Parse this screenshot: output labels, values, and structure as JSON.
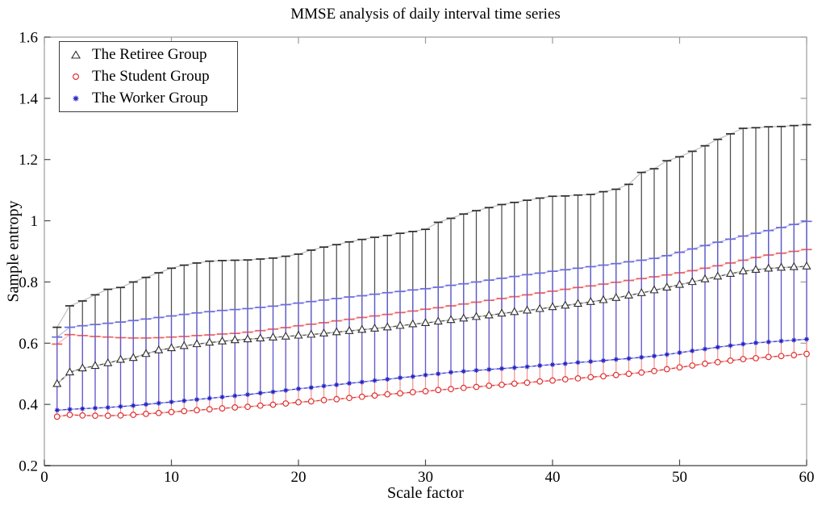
{
  "title": "MMSE analysis of daily interval time series",
  "axes": {
    "xlabel": "Scale factor",
    "ylabel": "Sample entropy",
    "xlim": [
      0,
      60
    ],
    "ylim": [
      0.2,
      1.6
    ],
    "x_ticks": [
      "0",
      "10",
      "20",
      "30",
      "40",
      "50",
      "60"
    ],
    "y_ticks": [
      "0.2",
      "0.4",
      "0.6",
      "0.8",
      "1",
      "1.2",
      "1.4",
      "1.6"
    ],
    "grid": "off",
    "box": "on"
  },
  "legend": {
    "position": "top-left"
  },
  "chart_data": {
    "type": "line",
    "note": "three series of mean sample entropy vs scale factor, each with upper error bars",
    "x": [
      1,
      2,
      3,
      4,
      5,
      6,
      7,
      8,
      9,
      10,
      11,
      12,
      13,
      14,
      15,
      16,
      17,
      18,
      19,
      20,
      21,
      22,
      23,
      24,
      25,
      26,
      27,
      28,
      29,
      30,
      31,
      32,
      33,
      34,
      35,
      36,
      37,
      38,
      39,
      40,
      41,
      42,
      43,
      44,
      45,
      46,
      47,
      48,
      49,
      50,
      51,
      52,
      53,
      54,
      55,
      56,
      57,
      58,
      59,
      60
    ],
    "series": [
      {
        "id": "retiree",
        "name": "The Retiree Group",
        "marker": "triangle",
        "colors": {
          "marker": "#2c2c2c",
          "line_base": "#c4c4c4",
          "line_dash": "#4a4a4a",
          "bar": "#4d4d4d",
          "cap": "#2c2c2c",
          "upper_line": "#bdbdbd"
        },
        "values": [
          0.467,
          0.505,
          0.518,
          0.526,
          0.535,
          0.546,
          0.552,
          0.565,
          0.577,
          0.584,
          0.591,
          0.597,
          0.602,
          0.606,
          0.61,
          0.613,
          0.616,
          0.619,
          0.622,
          0.625,
          0.628,
          0.632,
          0.636,
          0.64,
          0.644,
          0.648,
          0.652,
          0.657,
          0.662,
          0.666,
          0.671,
          0.676,
          0.681,
          0.686,
          0.691,
          0.697,
          0.702,
          0.707,
          0.712,
          0.718,
          0.723,
          0.729,
          0.735,
          0.741,
          0.748,
          0.756,
          0.764,
          0.773,
          0.782,
          0.791,
          0.8,
          0.809,
          0.818,
          0.827,
          0.835,
          0.84,
          0.844,
          0.847,
          0.849,
          0.851
        ],
        "upper": [
          0.652,
          0.722,
          0.738,
          0.758,
          0.776,
          0.782,
          0.8,
          0.815,
          0.83,
          0.845,
          0.855,
          0.862,
          0.868,
          0.87,
          0.871,
          0.872,
          0.875,
          0.878,
          0.884,
          0.891,
          0.904,
          0.914,
          0.922,
          0.931,
          0.939,
          0.946,
          0.952,
          0.959,
          0.965,
          0.972,
          0.995,
          1.008,
          1.022,
          1.033,
          1.043,
          1.053,
          1.06,
          1.067,
          1.074,
          1.08,
          1.081,
          1.084,
          1.086,
          1.095,
          1.103,
          1.119,
          1.158,
          1.17,
          1.196,
          1.209,
          1.227,
          1.245,
          1.266,
          1.284,
          1.302,
          1.304,
          1.307,
          1.308,
          1.311,
          1.314
        ]
      },
      {
        "id": "student",
        "name": "The Student Group",
        "marker": "circle",
        "colors": {
          "marker": "#e03030",
          "line_base": "#f5aaaa",
          "line_dash": "#e03535",
          "bar": "#f29292",
          "cap": "#ee5f5f",
          "upper_line": "#f6b0b0"
        },
        "values": [
          0.36,
          0.366,
          0.364,
          0.363,
          0.363,
          0.364,
          0.366,
          0.369,
          0.372,
          0.375,
          0.378,
          0.381,
          0.384,
          0.387,
          0.39,
          0.392,
          0.396,
          0.399,
          0.403,
          0.407,
          0.41,
          0.414,
          0.417,
          0.421,
          0.425,
          0.429,
          0.433,
          0.436,
          0.44,
          0.443,
          0.447,
          0.45,
          0.454,
          0.457,
          0.461,
          0.464,
          0.468,
          0.471,
          0.475,
          0.478,
          0.482,
          0.485,
          0.489,
          0.492,
          0.496,
          0.5,
          0.504,
          0.509,
          0.515,
          0.521,
          0.527,
          0.533,
          0.538,
          0.543,
          0.548,
          0.551,
          0.555,
          0.558,
          0.561,
          0.565
        ],
        "upper": [
          0.597,
          0.628,
          0.625,
          0.622,
          0.62,
          0.618,
          0.617,
          0.617,
          0.618,
          0.62,
          0.622,
          0.625,
          0.627,
          0.63,
          0.632,
          0.636,
          0.641,
          0.646,
          0.651,
          0.657,
          0.662,
          0.667,
          0.673,
          0.678,
          0.684,
          0.689,
          0.694,
          0.7,
          0.705,
          0.711,
          0.716,
          0.722,
          0.728,
          0.734,
          0.74,
          0.746,
          0.752,
          0.758,
          0.764,
          0.77,
          0.776,
          0.782,
          0.787,
          0.793,
          0.799,
          0.805,
          0.811,
          0.817,
          0.823,
          0.83,
          0.837,
          0.845,
          0.853,
          0.862,
          0.871,
          0.88,
          0.888,
          0.894,
          0.9,
          0.906
        ]
      },
      {
        "id": "worker",
        "name": "The Worker Group",
        "marker": "asterisk",
        "colors": {
          "marker": "#2424c4",
          "line_base": "#a9a9ec",
          "line_dash": "#3333cc",
          "bar": "#5a5ad6",
          "cap": "#6b6bde",
          "upper_line": "#b2b2ef"
        },
        "values": [
          0.381,
          0.384,
          0.386,
          0.388,
          0.39,
          0.393,
          0.396,
          0.4,
          0.404,
          0.408,
          0.412,
          0.416,
          0.42,
          0.424,
          0.428,
          0.432,
          0.437,
          0.441,
          0.446,
          0.451,
          0.455,
          0.46,
          0.464,
          0.469,
          0.473,
          0.478,
          0.482,
          0.487,
          0.491,
          0.496,
          0.5,
          0.505,
          0.508,
          0.511,
          0.514,
          0.517,
          0.52,
          0.523,
          0.527,
          0.53,
          0.533,
          0.537,
          0.54,
          0.543,
          0.547,
          0.55,
          0.554,
          0.558,
          0.563,
          0.569,
          0.575,
          0.581,
          0.587,
          0.592,
          0.597,
          0.601,
          0.604,
          0.607,
          0.61,
          0.613
        ],
        "upper": [
          0.62,
          0.652,
          0.657,
          0.661,
          0.665,
          0.669,
          0.674,
          0.679,
          0.684,
          0.689,
          0.694,
          0.699,
          0.703,
          0.707,
          0.71,
          0.713,
          0.717,
          0.721,
          0.726,
          0.731,
          0.736,
          0.741,
          0.746,
          0.751,
          0.755,
          0.76,
          0.765,
          0.769,
          0.774,
          0.778,
          0.783,
          0.789,
          0.794,
          0.8,
          0.806,
          0.812,
          0.818,
          0.824,
          0.829,
          0.835,
          0.84,
          0.845,
          0.85,
          0.855,
          0.86,
          0.866,
          0.871,
          0.877,
          0.886,
          0.897,
          0.908,
          0.919,
          0.93,
          0.94,
          0.95,
          0.959,
          0.968,
          0.978,
          0.988,
          0.998
        ]
      }
    ]
  }
}
